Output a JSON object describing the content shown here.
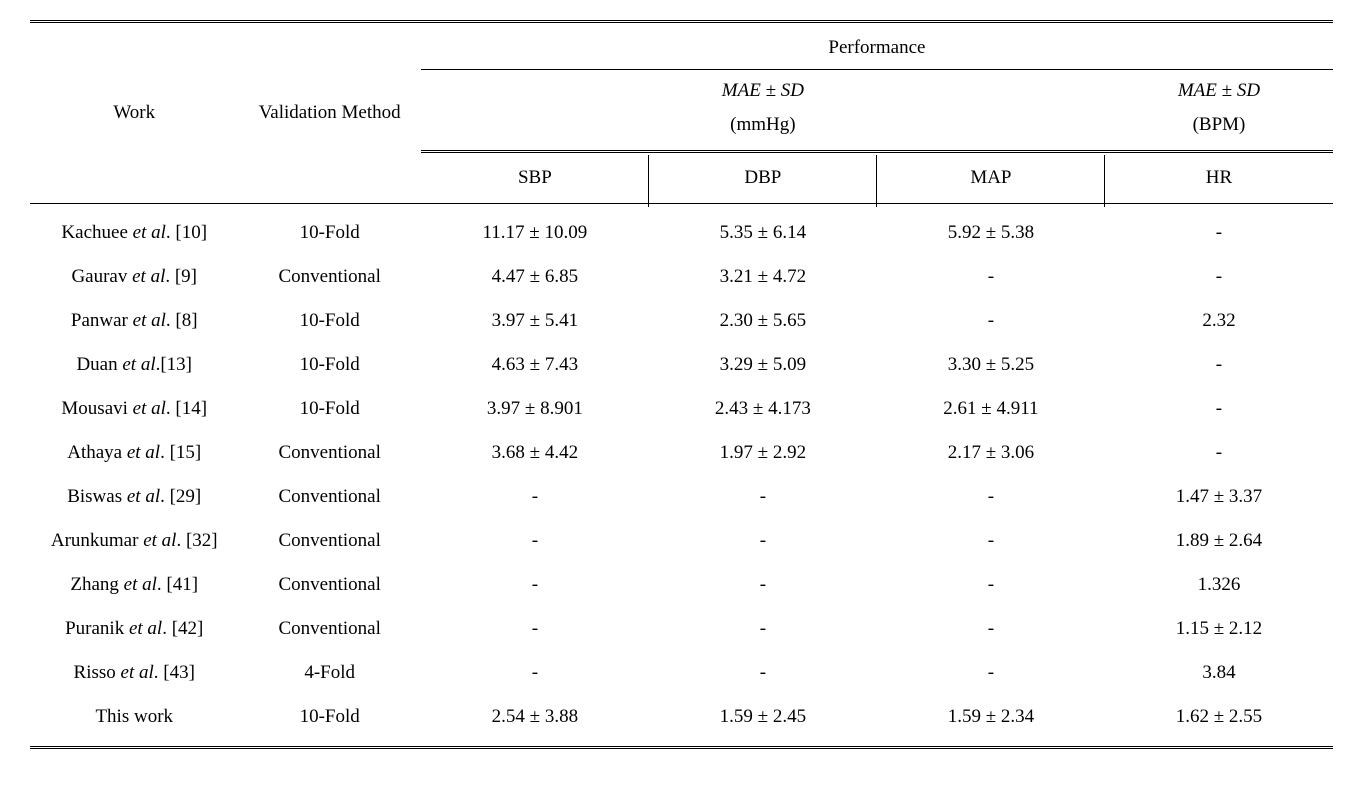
{
  "table": {
    "type": "table",
    "background_color": "#ffffff",
    "text_color": "#000000",
    "font_family": "Times New Roman",
    "base_fontsize_pt": 14,
    "border_color": "#000000",
    "double_rule_style": "3px double",
    "single_rule_style": "1px solid",
    "columns": {
      "work": {
        "label": "Work",
        "width_pct": 16
      },
      "validation": {
        "label": "Validation Method",
        "width_pct": 14
      },
      "sbp": {
        "label": "SBP",
        "width_pct": 17.5
      },
      "dbp": {
        "label": "DBP",
        "width_pct": 17.5
      },
      "map": {
        "label": "MAP",
        "width_pct": 17.5
      },
      "hr": {
        "label": "HR",
        "width_pct": 17.5
      }
    },
    "header": {
      "performance": "Performance",
      "group1_label": "MAE ± SD",
      "group1_unit": "(mmHg)",
      "group2_label": "MAE ± SD",
      "group2_unit": "(BPM)"
    },
    "rows": [
      {
        "work_prefix": "Kachuee ",
        "work_italic": "et al",
        "work_suffix": ". [10]",
        "validation": "10-Fold",
        "sbp": "11.17 ± 10.09",
        "dbp": "5.35 ± 6.14",
        "map": "5.92 ± 5.38",
        "hr": "-"
      },
      {
        "work_prefix": "Gaurav ",
        "work_italic": "et al",
        "work_suffix": ". [9]",
        "validation": "Conventional",
        "sbp": "4.47 ± 6.85",
        "dbp": "3.21 ± 4.72",
        "map": "-",
        "hr": "-"
      },
      {
        "work_prefix": "Panwar ",
        "work_italic": "et al",
        "work_suffix": ". [8]",
        "validation": "10-Fold",
        "sbp": "3.97 ± 5.41",
        "dbp": "2.30 ± 5.65",
        "map": "-",
        "hr": "2.32"
      },
      {
        "work_prefix": "Duan ",
        "work_italic": "et al",
        "work_suffix": ".[13]",
        "validation": "10-Fold",
        "sbp": "4.63 ± 7.43",
        "dbp": "3.29 ± 5.09",
        "map": "3.30 ± 5.25",
        "hr": "-"
      },
      {
        "work_prefix": "Mousavi ",
        "work_italic": "et al",
        "work_suffix": ". [14]",
        "validation": "10-Fold",
        "sbp": "3.97 ± 8.901",
        "dbp": "2.43 ± 4.173",
        "map": "2.61 ± 4.911",
        "hr": "-"
      },
      {
        "work_prefix": "Athaya ",
        "work_italic": "et al",
        "work_suffix": ". [15]",
        "validation": "Conventional",
        "sbp": "3.68 ± 4.42",
        "dbp": "1.97 ± 2.92",
        "map": "2.17 ± 3.06",
        "hr": "-"
      },
      {
        "work_prefix": "Biswas ",
        "work_italic": "et al",
        "work_suffix": ". [29]",
        "validation": "Conventional",
        "sbp": "-",
        "dbp": "-",
        "map": "-",
        "hr": "1.47 ± 3.37"
      },
      {
        "work_prefix": "Arunkumar ",
        "work_italic": "et al",
        "work_suffix": ". [32]",
        "validation": "Conventional",
        "sbp": "-",
        "dbp": "-",
        "map": "-",
        "hr": "1.89 ± 2.64"
      },
      {
        "work_prefix": "Zhang ",
        "work_italic": "et al",
        "work_suffix": ". [41]",
        "validation": "Conventional",
        "sbp": "-",
        "dbp": "-",
        "map": "-",
        "hr": "1.326"
      },
      {
        "work_prefix": "Puranik ",
        "work_italic": "et al",
        "work_suffix": ". [42]",
        "validation": "Conventional",
        "sbp": "-",
        "dbp": "-",
        "map": "-",
        "hr": "1.15 ± 2.12"
      },
      {
        "work_prefix": "Risso ",
        "work_italic": "et al",
        "work_suffix": ". [43]",
        "validation": "4-Fold",
        "sbp": "-",
        "dbp": "-",
        "map": "-",
        "hr": "3.84"
      },
      {
        "work_prefix": "This work",
        "work_italic": "",
        "work_suffix": "",
        "validation": "10-Fold",
        "sbp": "2.54 ± 3.88",
        "dbp": "1.59 ± 2.45",
        "map": "1.59 ± 2.34",
        "hr": "1.62 ± 2.55"
      }
    ]
  }
}
